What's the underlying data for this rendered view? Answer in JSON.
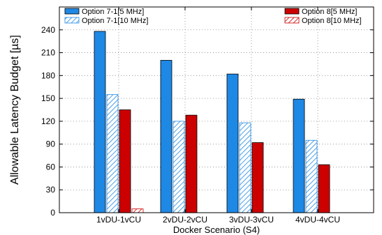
{
  "chart_data": {
    "type": "bar",
    "title": "",
    "xlabel": "Docker Scenario (S4)",
    "ylabel": "Allowable Latency Budget [µs]",
    "categories": [
      "1vDU-1vCU",
      "2vDU-2vCU",
      "3vDU-3vCU",
      "4vDU-4vCU"
    ],
    "ylim": [
      0,
      270
    ],
    "yticks": [
      0,
      30,
      60,
      90,
      120,
      150,
      180,
      210,
      240
    ],
    "grid": true,
    "legend_position": "top",
    "series": [
      {
        "name": "Option 7-1[5 MHz]",
        "values": [
          238,
          200,
          182,
          149
        ],
        "color": "#1e88e5",
        "pattern": "solid"
      },
      {
        "name": "Option 7-1[10 MHz]",
        "values": [
          155,
          120,
          118,
          95
        ],
        "color": "#1e88e5",
        "pattern": "hatch"
      },
      {
        "name": "Option 8[5 MHz]",
        "values": [
          135,
          128,
          92,
          63
        ],
        "color": "#cc0000",
        "pattern": "solid"
      },
      {
        "name": "Option 8[10 MHz]",
        "values": [
          5,
          0,
          0,
          0
        ],
        "color": "#cc0000",
        "pattern": "hatch"
      }
    ]
  }
}
